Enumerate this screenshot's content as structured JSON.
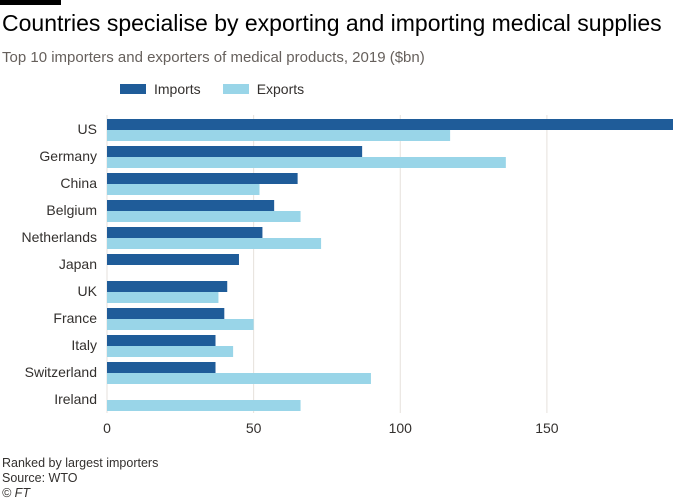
{
  "chart_data": {
    "type": "bar",
    "orientation": "horizontal",
    "title": "Countries specialise by exporting and importing medical supplies",
    "subtitle": "Top 10 importers and exporters of medical products, 2019 ($bn)",
    "categories": [
      "US",
      "Germany",
      "China",
      "Belgium",
      "Netherlands",
      "Japan",
      "UK",
      "France",
      "Italy",
      "Switzerland",
      "Ireland"
    ],
    "series": [
      {
        "name": "Imports",
        "color": "#1f5c99",
        "values": [
          193,
          87,
          65,
          57,
          53,
          45,
          41,
          40,
          37,
          37,
          null
        ]
      },
      {
        "name": "Exports",
        "color": "#99d5e8",
        "values": [
          117,
          136,
          52,
          66,
          73,
          null,
          38,
          50,
          43,
          90,
          66
        ]
      }
    ],
    "xlim": [
      0,
      193
    ],
    "xticks": [
      0,
      50,
      100,
      150
    ],
    "grid": true,
    "legend": "top-left"
  },
  "footer": {
    "note": "Ranked by largest importers",
    "source": "Source: WTO",
    "credit": "© FT"
  }
}
